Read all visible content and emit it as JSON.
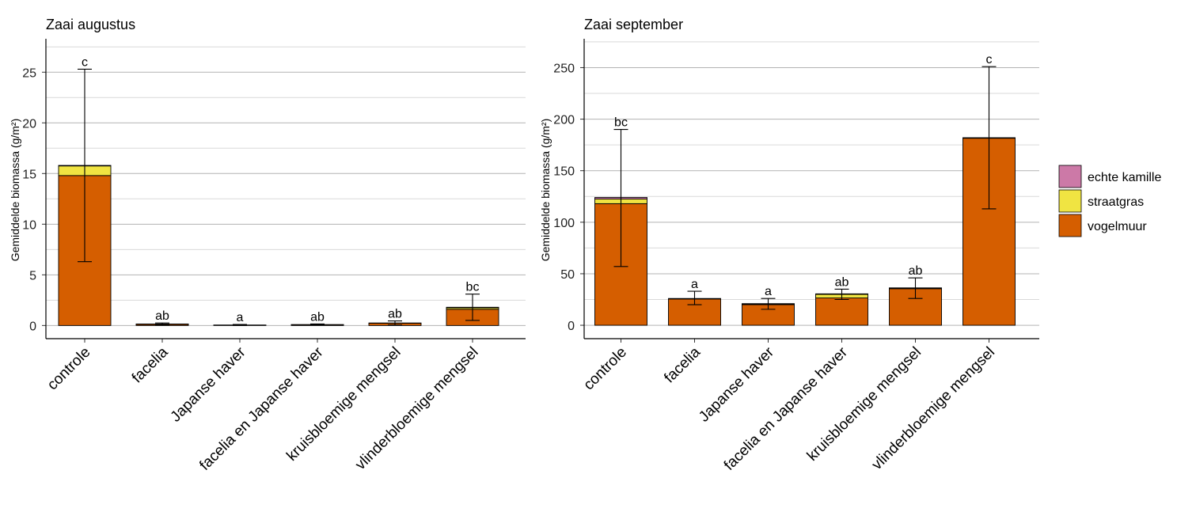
{
  "chart_data": [
    {
      "type": "bar",
      "stacked": true,
      "title": "Zaai augustus",
      "ylabel": "Gemiddelde biomassa (g/m²)",
      "xlabel": "",
      "ylim": [
        -1.3,
        28.3
      ],
      "yticks": [
        0,
        5,
        10,
        15,
        20,
        25
      ],
      "grid": true,
      "categories": [
        "controle",
        "facelia",
        "Japanse haver",
        "facelia en Japanse haver",
        "kruisbloemige mengsel",
        "vlinderbloemige mengsel"
      ],
      "series": [
        {
          "name": "vogelmuur",
          "values": [
            14.8,
            0.12,
            0.05,
            0.08,
            0.22,
            1.6
          ]
        },
        {
          "name": "straatgras",
          "values": [
            0.95,
            0.03,
            0.0,
            0.01,
            0.03,
            0.15
          ]
        },
        {
          "name": "echte kamille",
          "values": [
            0.05,
            0.0,
            0.0,
            0.0,
            0.0,
            0.05
          ]
        }
      ],
      "error_low": [
        6.3,
        0.02,
        0.0,
        0.02,
        0.05,
        0.5
      ],
      "error_high": [
        25.3,
        0.25,
        0.1,
        0.15,
        0.45,
        3.1
      ],
      "significance": [
        "c",
        "ab",
        "a",
        "ab",
        "ab",
        "bc"
      ]
    },
    {
      "type": "bar",
      "stacked": true,
      "title": "Zaai september",
      "ylabel": "Gemiddelde biomassa (g/m²)",
      "xlabel": "",
      "ylim": [
        -13,
        278
      ],
      "yticks": [
        0,
        50,
        100,
        150,
        200,
        250
      ],
      "grid": true,
      "categories": [
        "controle",
        "facelia",
        "Japanse haver",
        "facelia en Japanse haver",
        "kruisbloemige mengsel",
        "vlinderbloemige mengsel"
      ],
      "series": [
        {
          "name": "vogelmuur",
          "values": [
            118,
            25.5,
            20,
            26.5,
            35.5,
            181.5
          ]
        },
        {
          "name": "straatgras",
          "values": [
            4.5,
            0.3,
            0.5,
            3.5,
            0.5,
            0.3
          ]
        },
        {
          "name": "echte kamille",
          "values": [
            1.5,
            0.2,
            0.5,
            0.5,
            0.3,
            0.2
          ]
        }
      ],
      "error_low": [
        57,
        20,
        15.5,
        25,
        26,
        113
      ],
      "error_high": [
        190,
        33,
        26,
        35,
        46,
        251
      ],
      "significance": [
        "bc",
        "a",
        "a",
        "ab",
        "ab",
        "c"
      ]
    }
  ],
  "legend": {
    "position": "right",
    "items": [
      {
        "label": "echte kamille",
        "color": "#cc79a7"
      },
      {
        "label": "straatgras",
        "color": "#f0e442"
      },
      {
        "label": "vogelmuur",
        "color": "#d55e00"
      }
    ]
  },
  "colors": {
    "vogelmuur": "#d55e00",
    "straatgras": "#f0e442",
    "echte kamille": "#cc79a7",
    "grid_major": "#b3b3b3",
    "grid_minor": "#d9d9d9"
  }
}
